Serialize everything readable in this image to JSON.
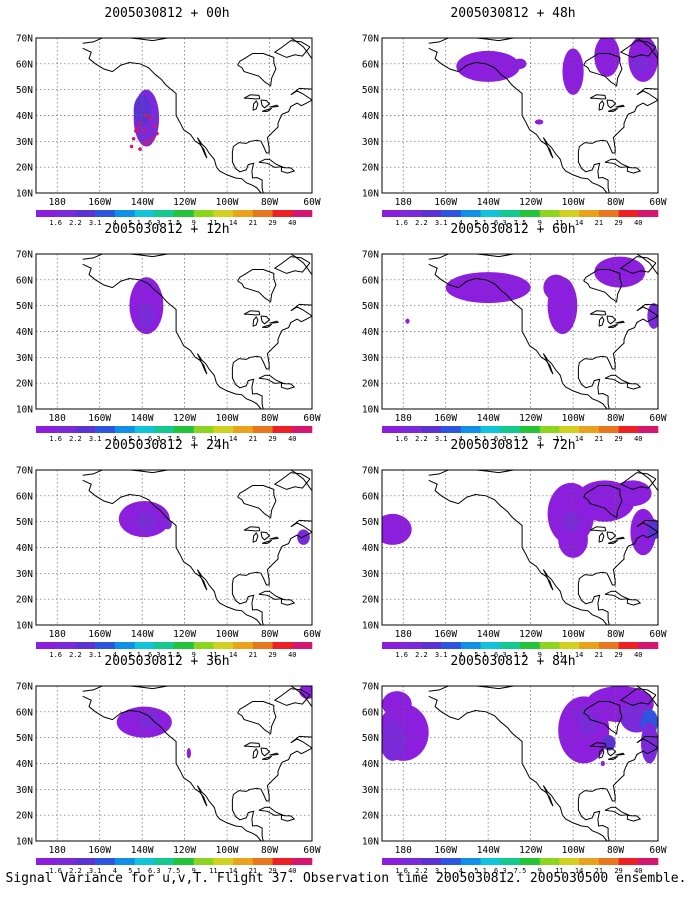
{
  "figure": {
    "caption": "Signal Variance for u,v,T. Flight 37. Observation time 2005030812. 2005030500 ensemble.",
    "lat_labels": [
      "70N",
      "60N",
      "50N",
      "40N",
      "30N",
      "20N",
      "10N"
    ],
    "lon_labels": [
      "180",
      "160W",
      "140W",
      "120W",
      "100W",
      "80W",
      "60W"
    ],
    "colorbar": {
      "labels": [
        "1.6",
        "2.2",
        "3.1",
        "4",
        "5.1",
        "6.3",
        "7.5",
        "9",
        "11",
        "14",
        "21",
        "29",
        "40"
      ],
      "colors": [
        "#8b1fdd",
        "#7a2ad8",
        "#5a33d2",
        "#2f55e0",
        "#0f8fe6",
        "#12c2d6",
        "#13c98e",
        "#23c43a",
        "#8bd520",
        "#d2d021",
        "#e9a21c",
        "#e8761c",
        "#ee2024",
        "#d4166e"
      ]
    },
    "panels": [
      {
        "title": "2005030812 + 00h",
        "col": 0,
        "row": 0
      },
      {
        "title": "2005030812 + 48h",
        "col": 1,
        "row": 0
      },
      {
        "title": "2005030812 + 12h",
        "col": 0,
        "row": 1
      },
      {
        "title": "2005030812 + 60h",
        "col": 1,
        "row": 1
      },
      {
        "title": "2005030812 + 24h",
        "col": 0,
        "row": 2
      },
      {
        "title": "2005030812 + 72h",
        "col": 1,
        "row": 2
      },
      {
        "title": "2005030812 + 36h",
        "col": 0,
        "row": 3
      },
      {
        "title": "2005030812 + 84h",
        "col": 1,
        "row": 3
      }
    ]
  }
}
